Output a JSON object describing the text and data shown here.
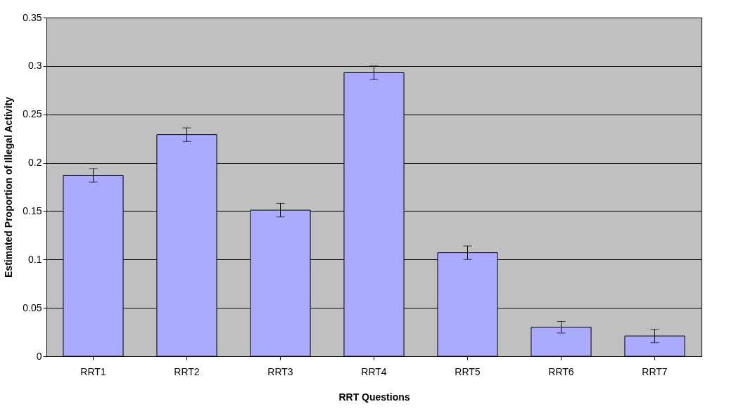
{
  "chart_data": {
    "type": "bar",
    "xlabel": "RRT Questions",
    "ylabel": "Estimated Proportion of Illegal Activity",
    "categories": [
      "RRT1",
      "RRT2",
      "RRT3",
      "RRT4",
      "RRT5",
      "RRT6",
      "RRT7"
    ],
    "values": [
      0.187,
      0.229,
      0.151,
      0.293,
      0.107,
      0.03,
      0.021
    ],
    "errors": [
      0.007,
      0.007,
      0.007,
      0.007,
      0.007,
      0.006,
      0.007
    ],
    "color": "#aaaaff",
    "ylim": [
      0,
      0.35
    ],
    "yticks": [
      0,
      0.05,
      0.1,
      0.15,
      0.2,
      0.25,
      0.3,
      0.35
    ],
    "grid": "y"
  }
}
